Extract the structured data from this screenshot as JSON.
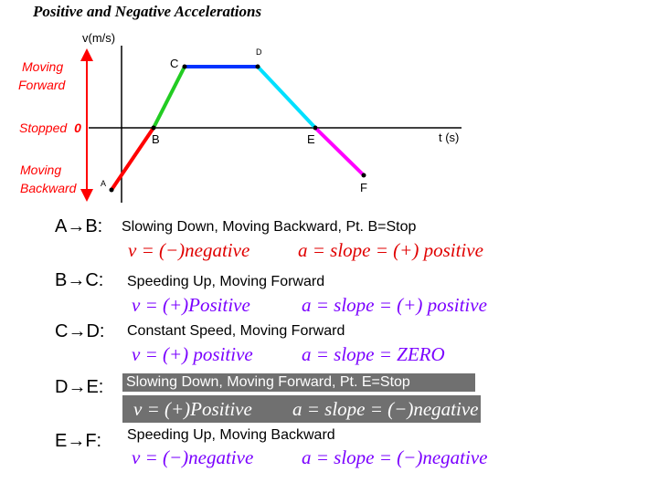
{
  "title": "Positive and Negative Accelerations",
  "graph": {
    "y_axis_label": "v(m/s)",
    "x_axis_label": "t (s)",
    "zero_label": "0",
    "state_moving_forward": [
      "Moving",
      "Forward"
    ],
    "state_stopped": "Stopped",
    "state_moving_backward": [
      "Moving",
      "Backward"
    ],
    "points": {
      "A": "A",
      "B": "B",
      "C": "C",
      "D": "D",
      "E": "E",
      "F": "F"
    },
    "segment_colors": {
      "AB": "#ff0000",
      "BC": "#22cc22",
      "CD": "#0033ff",
      "DE": "#00e0ff",
      "EF": "#ff00ff"
    }
  },
  "rows": [
    {
      "segment": "A→B:",
      "description": "Slowing Down, Moving Backward, Pt. B=Stop",
      "velocity": "v = (−)negative",
      "acceleration": "a = slope = (+) positive"
    },
    {
      "segment": "B→C:",
      "description": "Speeding Up, Moving Forward",
      "velocity": "v = (+)Positive",
      "acceleration": "a = slope = (+) positive"
    },
    {
      "segment": "C→D:",
      "description": "Constant Speed, Moving Forward",
      "velocity": "v = (+) positive",
      "acceleration": "a = slope = ZERO"
    },
    {
      "segment": "D→E:",
      "description": "Slowing Down, Moving Forward, Pt. E=Stop",
      "velocity": "v = (+)Positive",
      "acceleration": "a = slope = (−)negative"
    },
    {
      "segment": "E→F:",
      "description": "Speeding Up, Moving Backward",
      "velocity": "v = (−)negative",
      "acceleration": "a = slope = (−)negative"
    }
  ]
}
